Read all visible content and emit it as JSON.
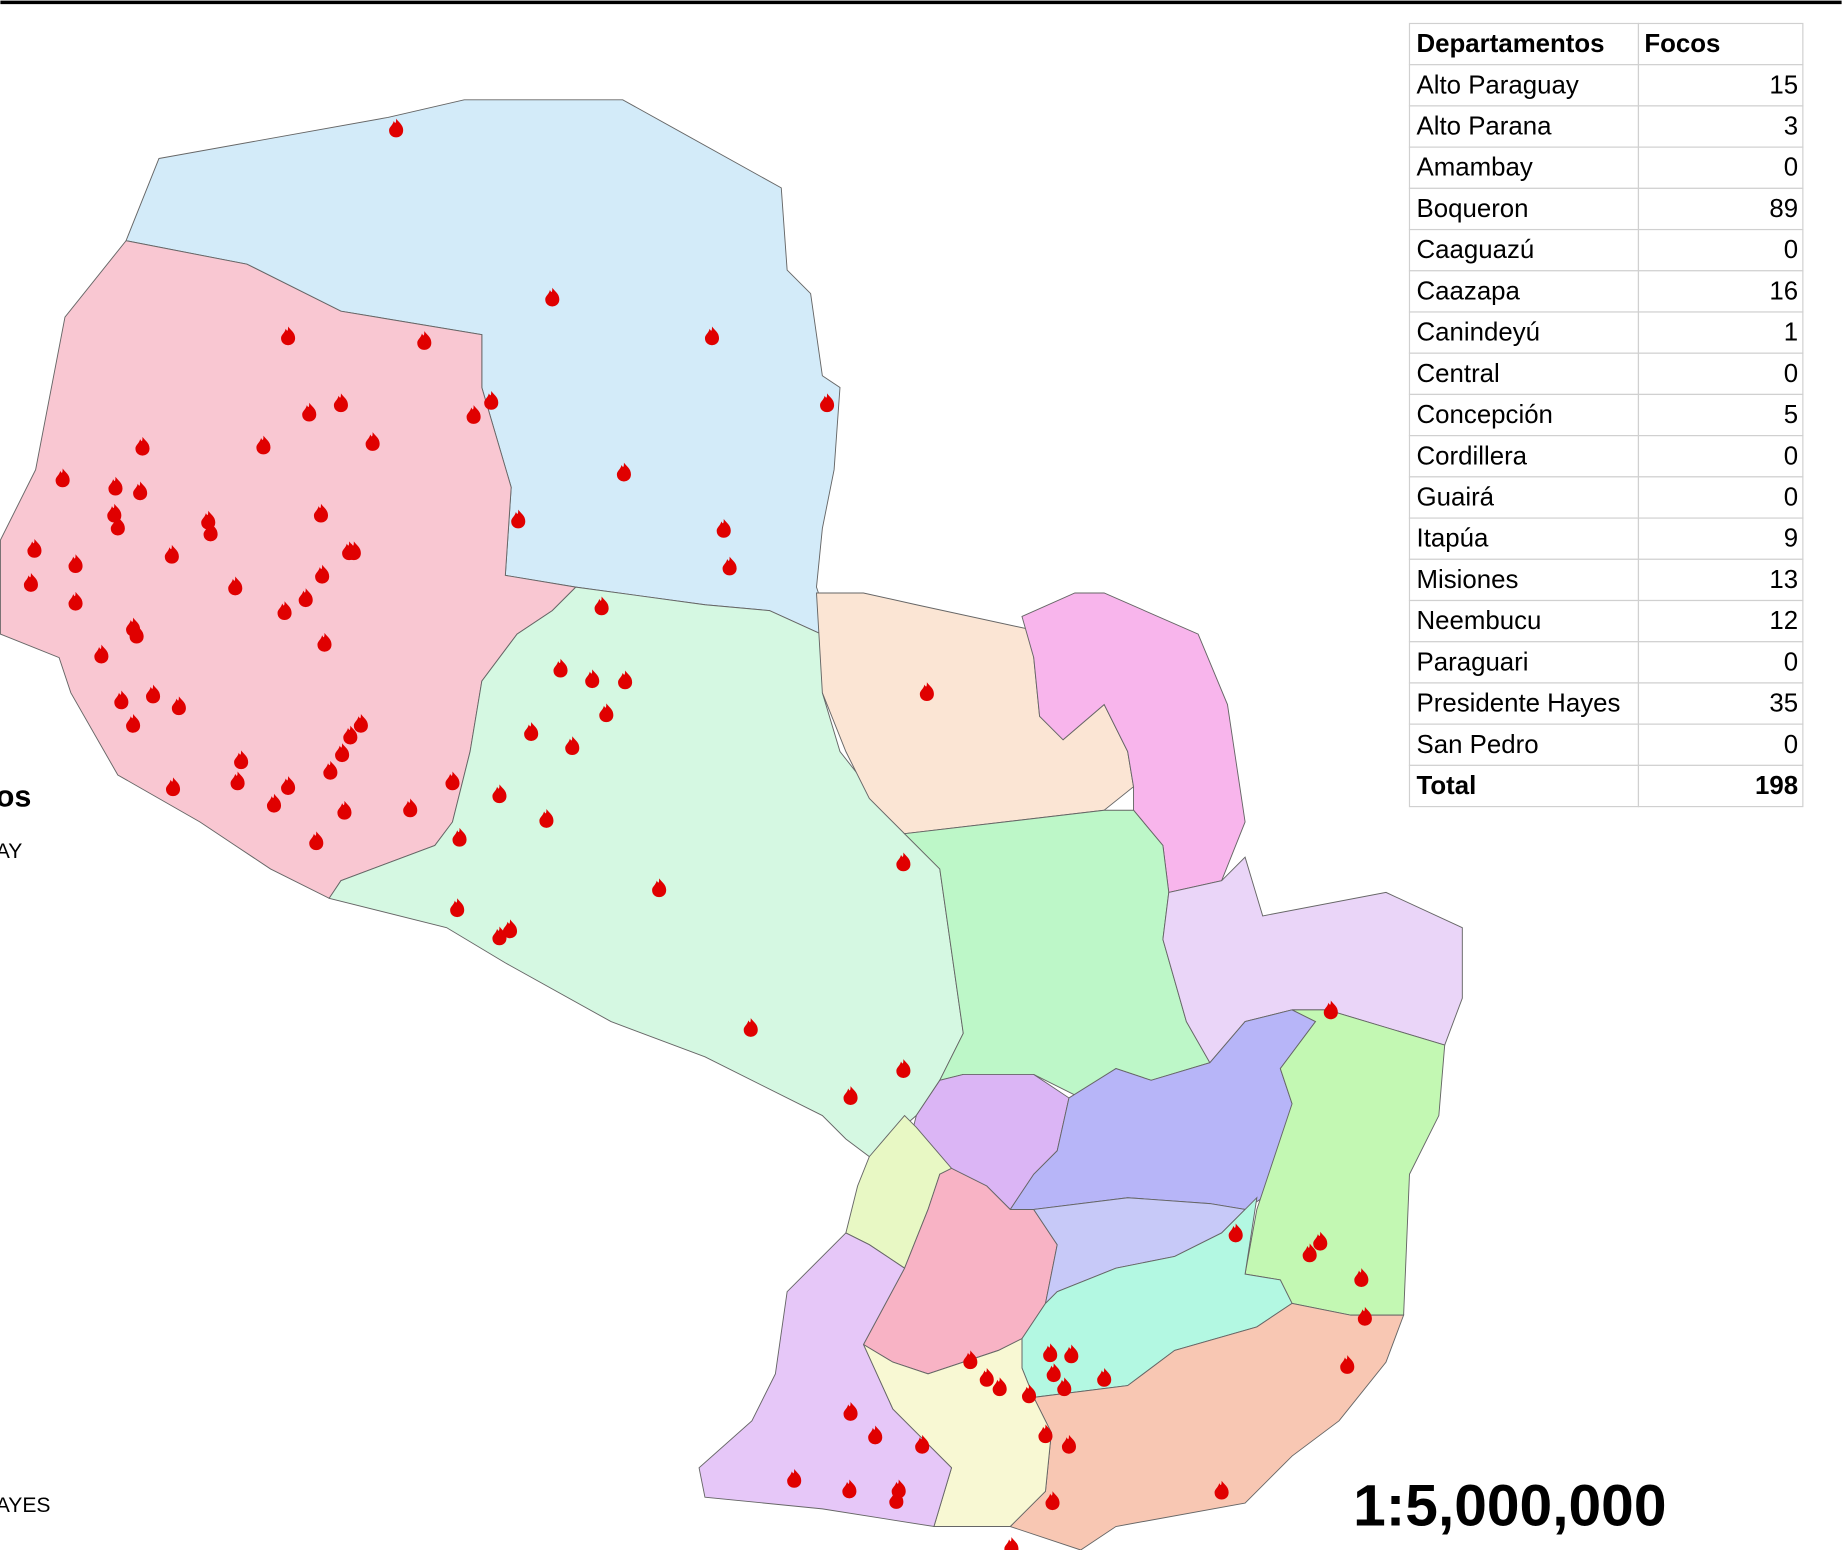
{
  "table": {
    "headers": [
      "Departamentos",
      "Focos"
    ],
    "rows": [
      [
        "Alto Paraguay",
        15
      ],
      [
        "Alto Parana",
        3
      ],
      [
        "Amambay",
        0
      ],
      [
        "Boqueron",
        89
      ],
      [
        "Caaguazú",
        0
      ],
      [
        "Caazapa",
        16
      ],
      [
        "Canindeyú",
        1
      ],
      [
        "Central",
        0
      ],
      [
        "Concepción",
        5
      ],
      [
        "Cordillera",
        0
      ],
      [
        "Guairá",
        0
      ],
      [
        "Itapúa",
        9
      ],
      [
        "Misiones",
        13
      ],
      [
        "Neembucu",
        12
      ],
      [
        "Paraguari",
        0
      ],
      [
        "Presidente Hayes",
        35
      ],
      [
        "San Pedro",
        0
      ]
    ],
    "total": [
      "Total",
      198
    ]
  },
  "scale": "1:5,000,000",
  "legend_fragments": [
    "os",
    "AY",
    "AYES"
  ]
}
